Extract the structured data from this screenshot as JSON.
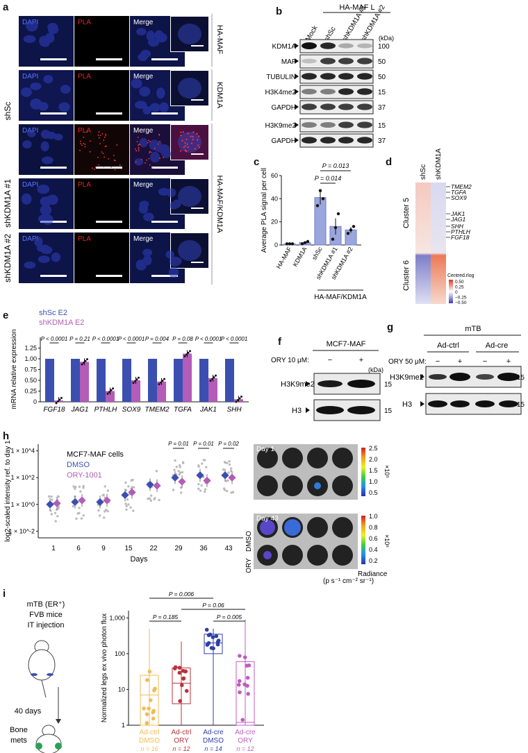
{
  "panel_letters": {
    "a": "a",
    "b": "b",
    "c": "c",
    "d": "d",
    "e": "e",
    "f": "f",
    "g": "g",
    "h": "h",
    "i": "i"
  },
  "a": {
    "channels": [
      "DAPI",
      "PLA",
      "Merge"
    ],
    "row_labels": {
      "shSc": "shSc",
      "shKDM1A_1": "shKDM1A #1",
      "shKDM1A_2": "shKDM1A #2"
    },
    "side_labels": {
      "hamaf": "HA-MAF",
      "kdm1a": "KDM1A",
      "combo": "HA-MAF/KDM1A"
    }
  },
  "b": {
    "group_header": "HA-MAF L",
    "lanes": [
      "Mock",
      "shSc",
      "shKDM1A #1",
      "shKDM1A #2"
    ],
    "kda": "(kDa)",
    "bands": [
      {
        "name": "KDM1A",
        "mw": "100"
      },
      {
        "name": "MAF",
        "mw": "50"
      },
      {
        "name": "TUBULIN",
        "mw": "50"
      },
      {
        "name": "H3K4me2",
        "mw": "15"
      },
      {
        "name": "GAPDH",
        "mw": "37"
      },
      {
        "name": "H3K9me2",
        "mw": "15"
      },
      {
        "name": "GAPDH",
        "mw": "37"
      }
    ]
  },
  "chart_data": [
    {
      "panel": "c",
      "type": "bar",
      "ylabel": "Average PLA signal per cell",
      "ylim": [
        0,
        60
      ],
      "yticks": [
        0,
        20,
        40,
        60
      ],
      "categories": [
        "HA-MAF",
        "KDM1A",
        "shSc",
        "shKDM1A #1",
        "shKDM1A #2"
      ],
      "values": [
        1,
        2,
        41,
        16,
        13
      ],
      "errors": [
        0.4,
        1,
        6,
        7,
        2.5
      ],
      "points": [
        [
          1,
          1,
          1
        ],
        [
          1,
          2,
          3
        ],
        [
          34,
          47,
          40
        ],
        [
          5,
          15,
          27
        ],
        [
          10,
          13,
          16
        ]
      ],
      "annotations": [
        "P = 0.013",
        "P = 0.014"
      ],
      "group_label": "HA-MAF/KDM1A"
    },
    {
      "panel": "e",
      "type": "bar",
      "ylabel": "mRNA relative expression",
      "ylim": [
        0,
        1.5
      ],
      "yticks": [
        "0",
        "0.25",
        "0.50",
        "0.75",
        "1.00",
        "1.25"
      ],
      "categories": [
        "FGF18",
        "JAG1",
        "PTHLH",
        "SOX9",
        "TMEM2",
        "TGFA",
        "JAK1",
        "SHH"
      ],
      "series": [
        {
          "name": "shSc E2",
          "color": "#3b4fb0",
          "values": [
            1,
            1,
            1,
            1,
            1,
            1,
            1,
            1
          ]
        },
        {
          "name": "shKDM1A E2",
          "color": "#b35cb8",
          "values": [
            0.03,
            0.93,
            0.25,
            0.5,
            0.47,
            1.12,
            0.55,
            0.06
          ]
        }
      ],
      "annotations": [
        "P < 0.0001",
        "P = 0.21",
        "P < 0.0001",
        "P < 0.0001",
        "P = 0.004",
        "P = 0.08",
        "P < 0.0001",
        "P < 0.0001"
      ]
    },
    {
      "panel": "h",
      "type": "scatter",
      "ylabel": "log2-scaled intensity ref. to day 1",
      "xlabel": "Days",
      "x": [
        1,
        6,
        9,
        15,
        22,
        29,
        36,
        43
      ],
      "ytick_labels": [
        "1 × 10^-2",
        "1 × 10^0",
        "1 × 10^2",
        "1 × 10^4"
      ],
      "yscale": "log",
      "series": [
        {
          "name": "DMSO",
          "color": "#3b4fb0",
          "values": [
            1,
            1.5,
            1.5,
            5,
            30,
            100,
            150,
            150
          ]
        },
        {
          "name": "ORY-1001",
          "color": "#b35cb8",
          "values": [
            1.2,
            2,
            2,
            8,
            25,
            50,
            60,
            100
          ]
        }
      ],
      "legend_title": "MCF7-MAF cells",
      "annotations": [
        "P = 0.01",
        "P = 0.01",
        "P = 0.02"
      ]
    },
    {
      "panel": "i",
      "type": "box",
      "ylabel": "Normalized legs ex vivo photon flux",
      "yscale": "log",
      "yticks": [
        "1",
        "10",
        "100",
        "1,000"
      ],
      "categories": [
        "Ad-ctrl DMSO",
        "Ad-ctrl ORY",
        "Ad-cre DMSO",
        "Ad-cre ORY"
      ],
      "n": [
        "n = 16",
        "n = 12",
        "n = 14",
        "n = 12"
      ],
      "colors": [
        "#f2bb55",
        "#b8323a",
        "#2f3fa8",
        "#c05cc0"
      ],
      "medians": [
        7,
        15,
        200,
        1.2
      ],
      "q1": [
        1,
        4,
        100,
        1
      ],
      "q3": [
        25,
        40,
        350,
        60
      ],
      "min": [
        1,
        1,
        1,
        1
      ],
      "max": [
        500,
        220,
        500,
        900
      ],
      "annotations": [
        "P = 0.006",
        "P = 0.06",
        "P = 0.185",
        "P = 0.005"
      ]
    }
  ],
  "d": {
    "columns": [
      "shSc",
      "shKDM1A"
    ],
    "clusters": [
      "Cluster 5",
      "Cluster 6"
    ],
    "genes": [
      "TMEM2",
      "TGFA",
      "SOX9",
      "JAK1",
      "JAG1",
      "SHH",
      "PTHLH",
      "FGF18"
    ],
    "legend_title": "Centred.rlog",
    "legend_ticks": [
      "0.50",
      "0.25",
      "0",
      "−0.25",
      "−0.50"
    ]
  },
  "f": {
    "header": "MCF7-MAF",
    "treatment": "ORY 10 μM:",
    "lanes": [
      "−",
      "+"
    ],
    "kda": "(kDa)",
    "bands": [
      {
        "name": "H3K9me2",
        "mw": "15"
      },
      {
        "name": "H3",
        "mw": "15"
      }
    ]
  },
  "g": {
    "header": "mTB",
    "groups": [
      "Ad-ctrl",
      "Ad-cre"
    ],
    "treatment": "ORY 50 μM:",
    "lanes": [
      "−",
      "+",
      "−",
      "+"
    ],
    "kda": "(kDa)",
    "bands": [
      {
        "name": "H3K9me2",
        "mw": "15"
      },
      {
        "name": "H3",
        "mw": "15"
      }
    ]
  },
  "h_images": {
    "day1": "Day 1",
    "day43": "Day 43",
    "dmso": "DMSO",
    "ory": "ORY",
    "scale1": [
      "2.5",
      "2.0",
      "1.5",
      "1.0",
      "0.5"
    ],
    "scale1_unit": "×10⁵",
    "scale2": [
      "1.0",
      "0.8",
      "0.6",
      "0.4",
      "0.2"
    ],
    "scale2_unit": "×10⁶",
    "radiance": "Radiance",
    "radiance_unit": "(p s⁻¹ cm⁻² sr⁻¹)"
  },
  "i_scheme": {
    "line1": "mTB (ER⁺)",
    "line2": "FVB mice",
    "line3": "IT injection",
    "duration": "40 days",
    "bone1": "Bone",
    "bone2": "mets"
  }
}
